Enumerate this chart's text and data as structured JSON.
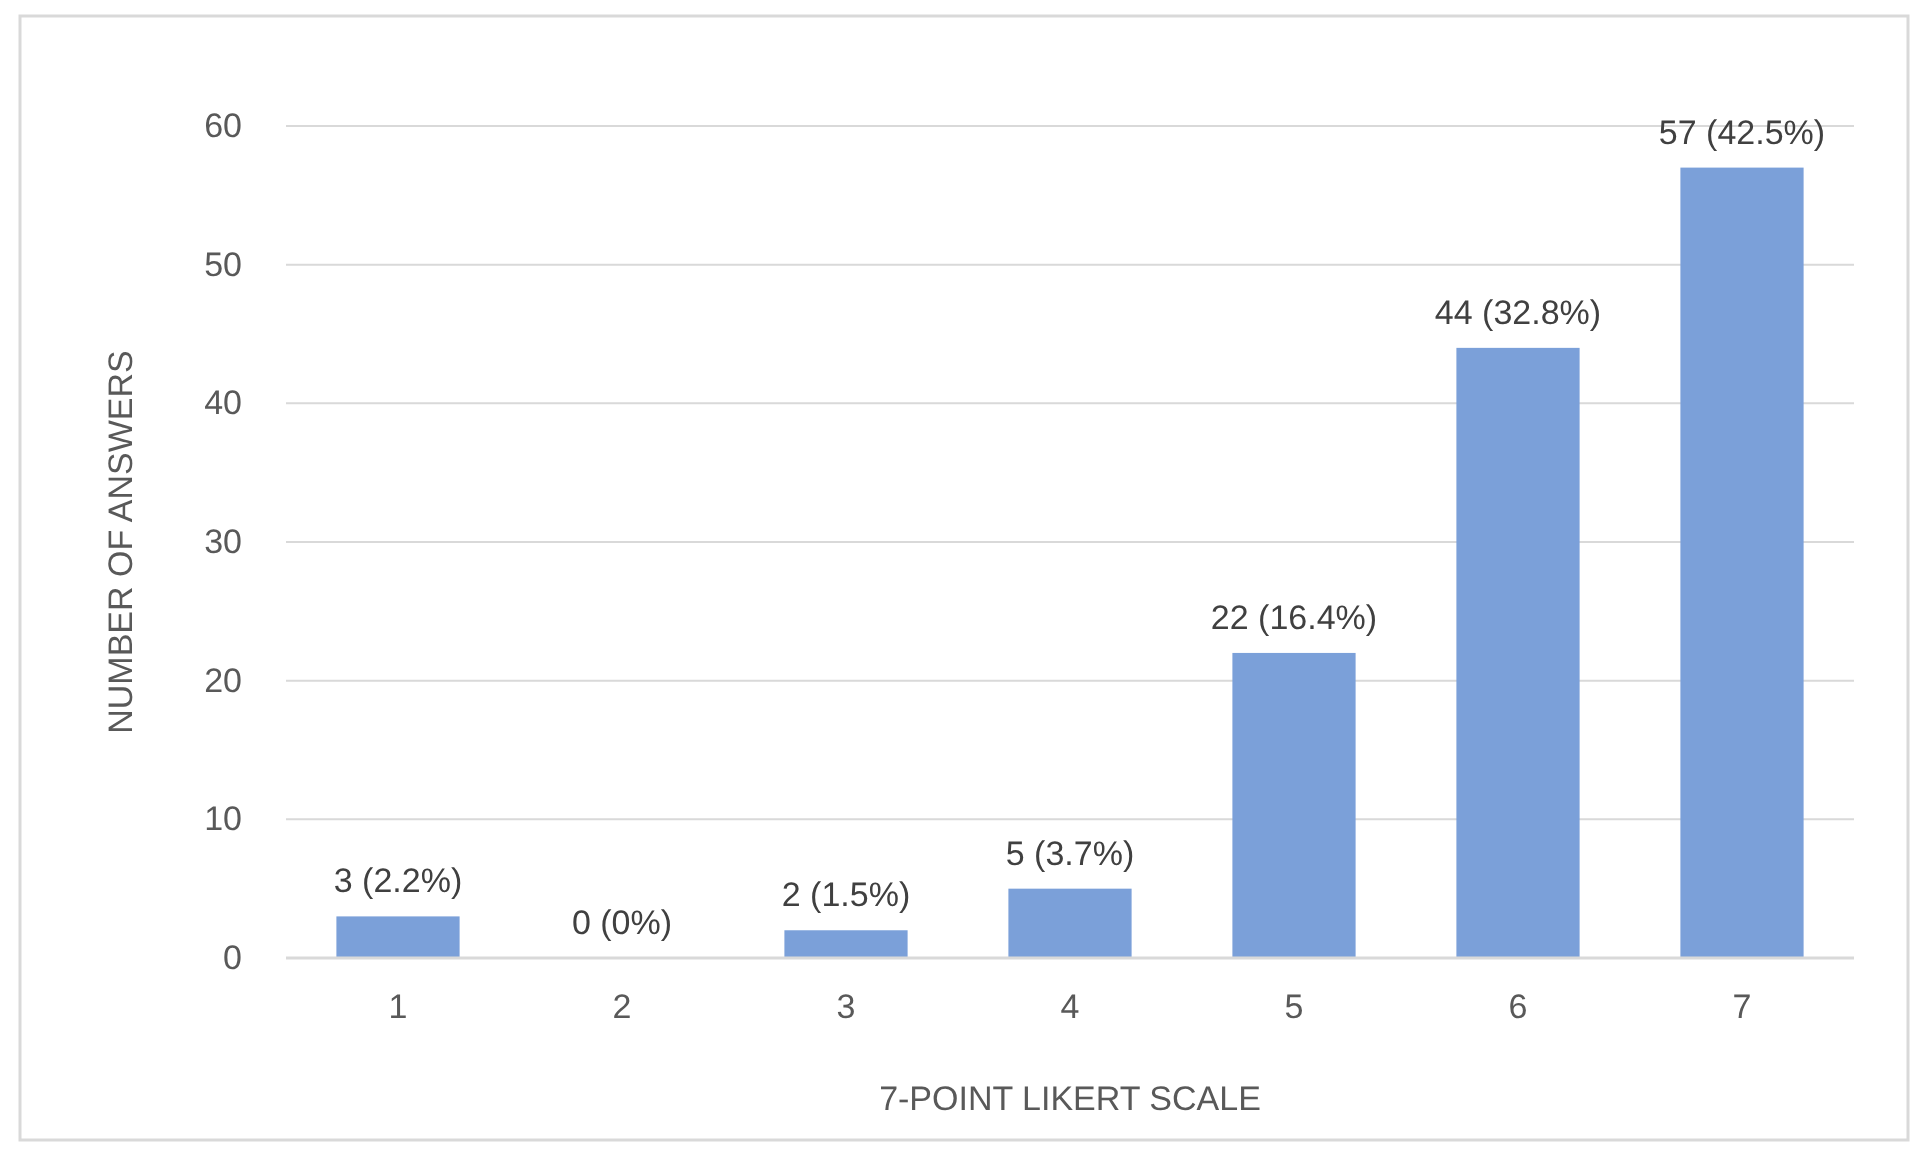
{
  "chart_data": {
    "type": "bar",
    "categories": [
      "1",
      "2",
      "3",
      "4",
      "5",
      "6",
      "7"
    ],
    "values": [
      3,
      0,
      2,
      5,
      22,
      44,
      57
    ],
    "value_labels": [
      "3 (2.2%)",
      "0 (0%)",
      "2 (1.5%)",
      "5 (3.7%)",
      "22 (16.4%)",
      "44 (32.8%)",
      "57 (42.5%)"
    ],
    "color": "#7ba0d9",
    "xlabel": "7-POINT LIKERT SCALE",
    "ylabel": "NUMBER OF ANSWERS",
    "ylim": [
      0,
      60
    ],
    "yticks": [
      0,
      10,
      20,
      30,
      40,
      50,
      60
    ],
    "grid": "y"
  }
}
